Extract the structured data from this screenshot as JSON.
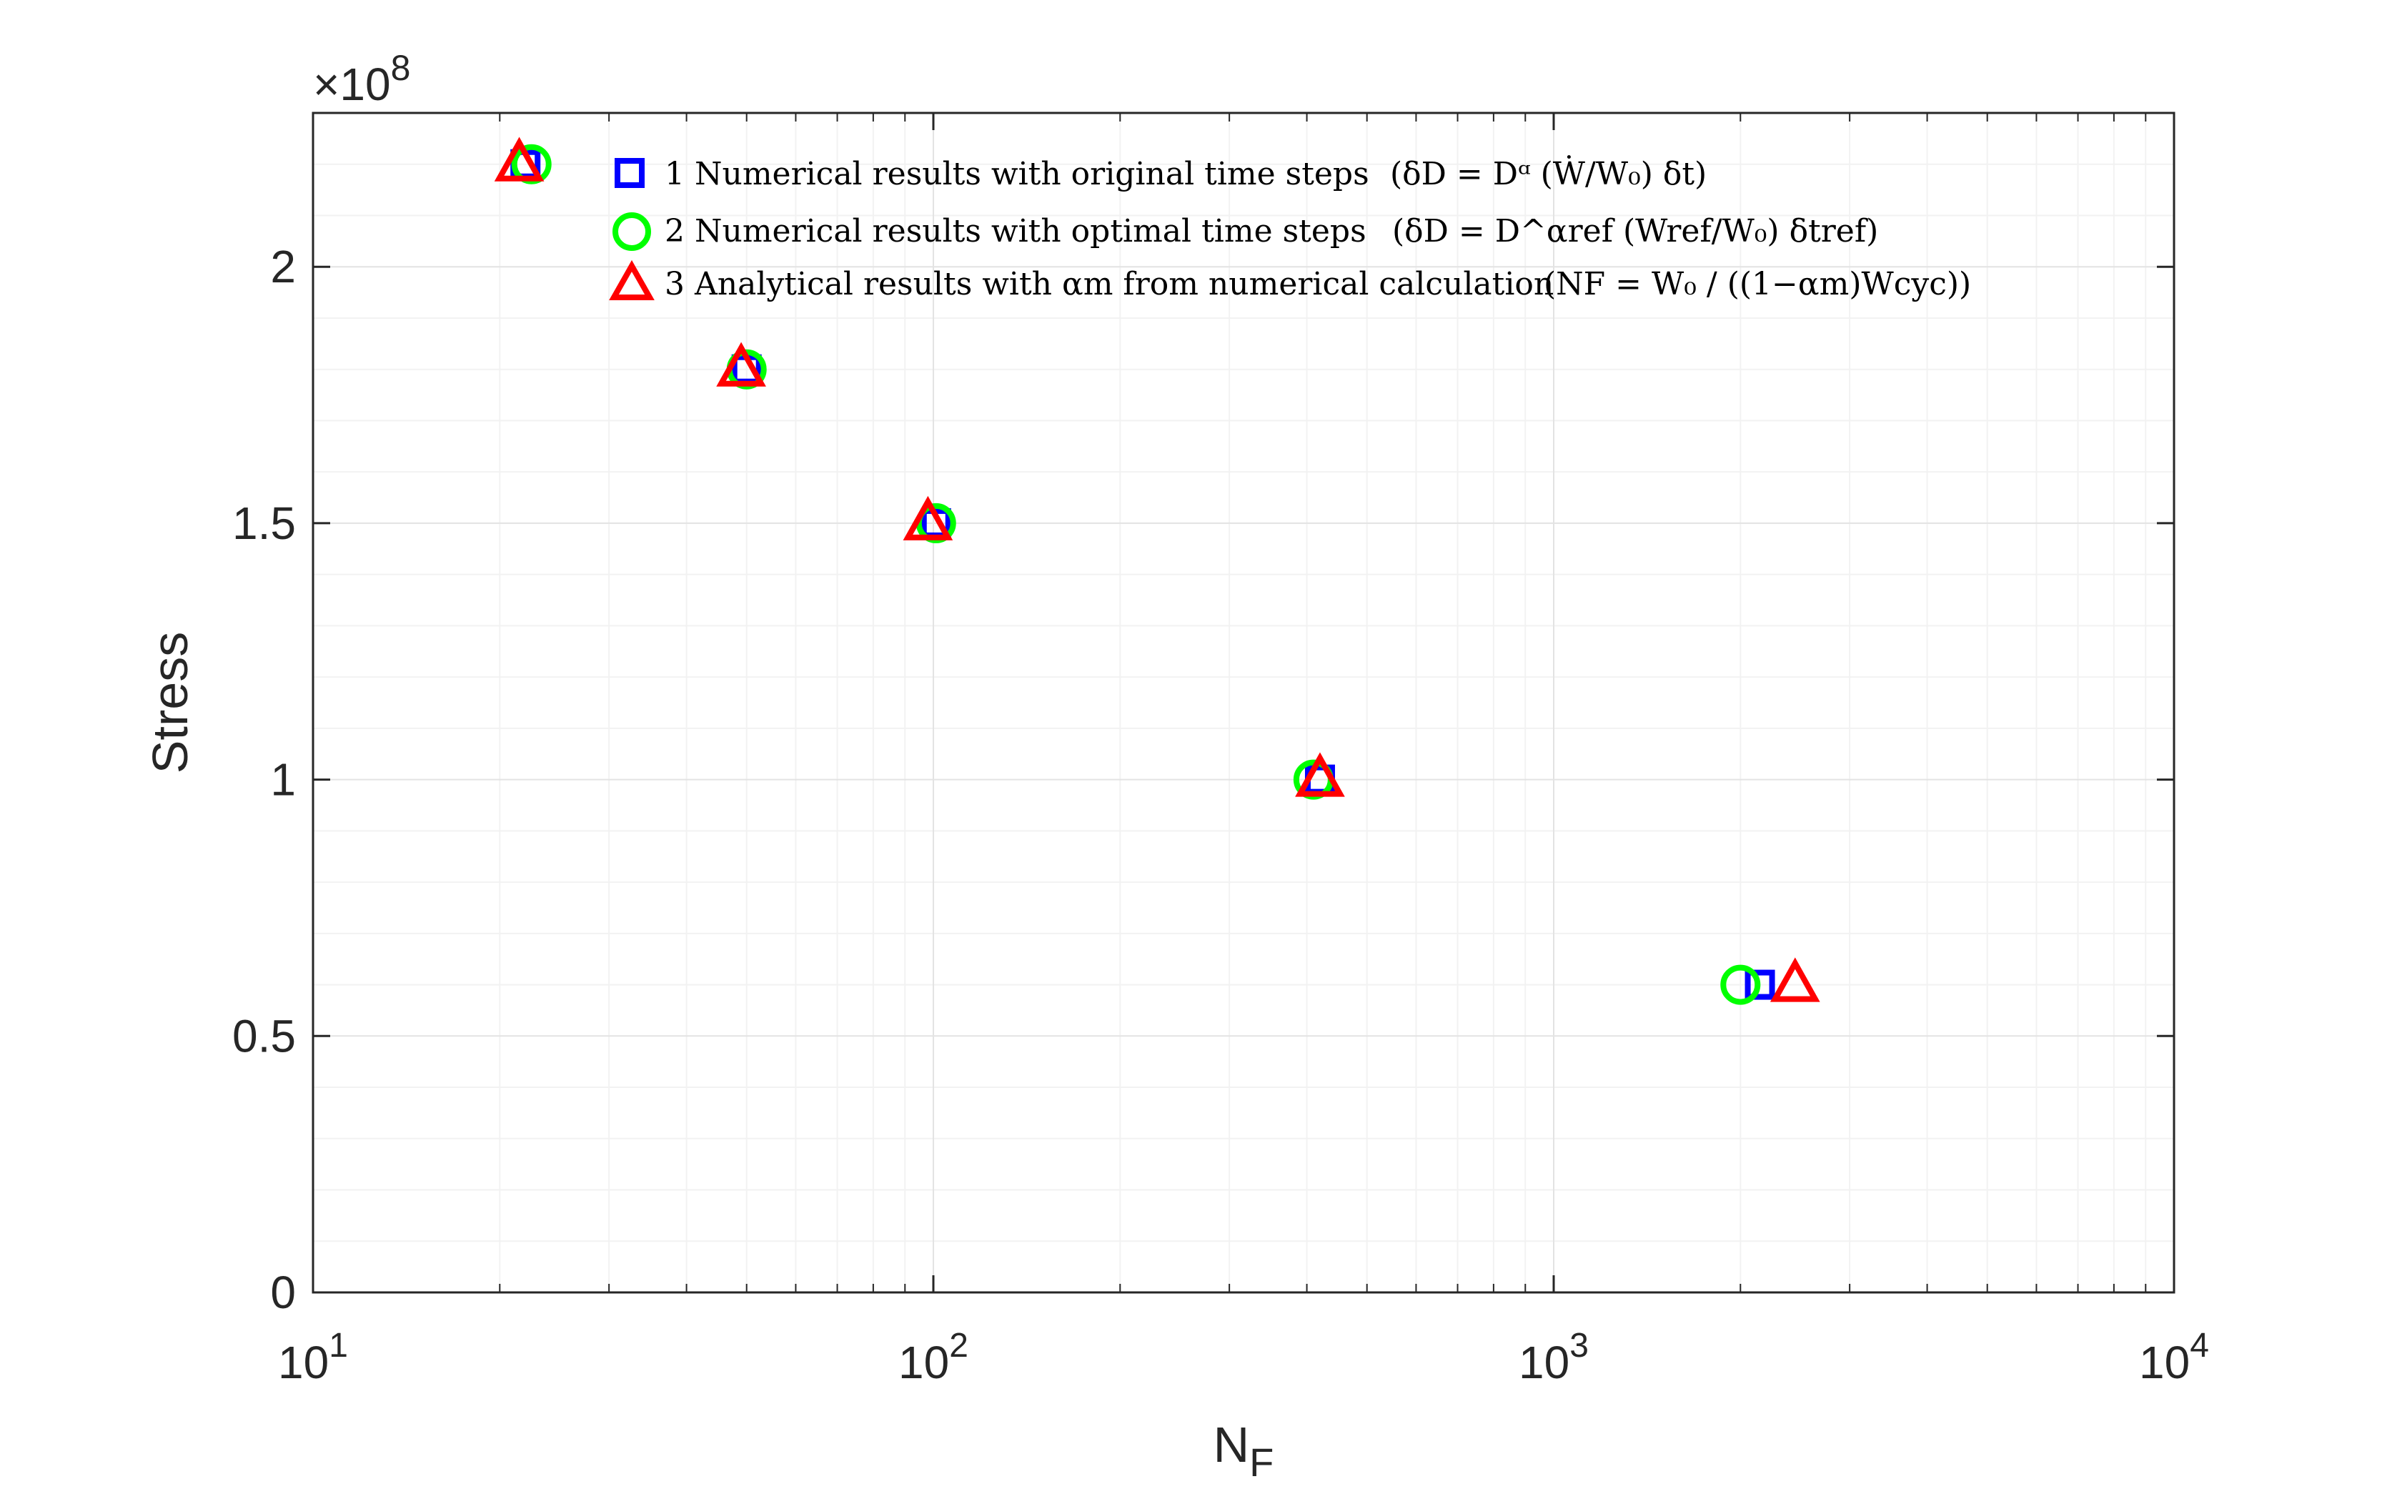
{
  "chart_data": {
    "type": "scatter",
    "x_scale": "log",
    "xlim": [
      10,
      10000
    ],
    "ylim": [
      0,
      230000000
    ],
    "grid": true,
    "minor_grid": true,
    "legend_position": "top-left",
    "xlabel": "N",
    "xlabel_subscript": "F",
    "ylabel": "Stress",
    "y_exponent_label": "×10",
    "y_exponent_value": "8",
    "x_ticks": [
      {
        "value": 10,
        "base": "10",
        "exp": "1"
      },
      {
        "value": 100,
        "base": "10",
        "exp": "2"
      },
      {
        "value": 1000,
        "base": "10",
        "exp": "3"
      },
      {
        "value": 10000,
        "base": "10",
        "exp": "4"
      }
    ],
    "y_ticks": [
      {
        "value": 0,
        "label": "0"
      },
      {
        "value": 50000000,
        "label": "0.5"
      },
      {
        "value": 100000000,
        "label": "1"
      },
      {
        "value": 150000000,
        "label": "1.5"
      },
      {
        "value": 200000000,
        "label": "2"
      }
    ],
    "series": [
      {
        "name": "1 Numerical results with original time steps",
        "legend_math": "(δD = Dᵅ (Ẇ/W₀) δt)",
        "marker": "square",
        "color": "#0000ff",
        "points": [
          [
            22,
            220000000
          ],
          [
            50,
            180000000
          ],
          [
            101,
            150000000
          ],
          [
            420,
            100000000
          ],
          [
            2150,
            60000000
          ]
        ]
      },
      {
        "name": "2 Numerical results with optimal time steps",
        "legend_math": "(δD = D^αref (Wref/W₀) δtref)",
        "marker": "circle",
        "color": "#00ff00",
        "points": [
          [
            22.5,
            220000000
          ],
          [
            50,
            180000000
          ],
          [
            101,
            150000000
          ],
          [
            410,
            100000000
          ],
          [
            2000,
            60000000
          ]
        ]
      },
      {
        "name": "3 Analytical results with αm from numerical calculation",
        "legend_math": "(NF = W₀ / ((1−αm)Wcyc))",
        "marker": "triangle",
        "color": "#ff0000",
        "points": [
          [
            21.5,
            220000000
          ],
          [
            49,
            180000000
          ],
          [
            98,
            150000000
          ],
          [
            420,
            100000000
          ],
          [
            2450,
            60000000
          ]
        ]
      }
    ]
  }
}
